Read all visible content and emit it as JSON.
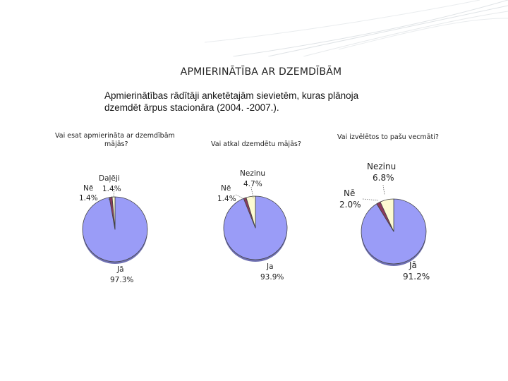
{
  "slide": {
    "title": "APMIERINĀTĪBA AR DZEMDĪBĀM",
    "subtitle_line1": "Apmierinātības rādītāji anketētajām sievietēm, kuras plānoja",
    "subtitle_line2": "dzemdēt ārpus stacionāra (2004. -2007.)."
  },
  "colors": {
    "ja": "#9a9cf7",
    "ne": "#8c3a5e",
    "third": "#fdfbd2",
    "outline": "#444444",
    "decoration": "#dfe3e6"
  },
  "chart_data": [
    {
      "type": "pie",
      "title_lines": [
        "Vai esat apmierināta ar dzemdībām",
        "mājās?"
      ],
      "slices": [
        {
          "label": "Jā",
          "value": 97.3,
          "text": "97.3%"
        },
        {
          "label": "Nē",
          "value": 1.4,
          "text": "1.4%"
        },
        {
          "label": "Daļēji",
          "value": 1.4,
          "text": "1.4%"
        }
      ]
    },
    {
      "type": "pie",
      "title_lines": [
        "Vai atkal dzemdētu mājās?"
      ],
      "slices": [
        {
          "label": "Ja",
          "value": 93.9,
          "text": "93.9%"
        },
        {
          "label": "Nē",
          "value": 1.4,
          "text": "1.4%"
        },
        {
          "label": "Nezinu",
          "value": 4.7,
          "text": "4.7%"
        }
      ]
    },
    {
      "type": "pie",
      "title_lines": [
        "Vai izvēlētos to pašu vecmāti?"
      ],
      "slices": [
        {
          "label": "Jā",
          "value": 91.2,
          "text": "91.2%"
        },
        {
          "label": "Nē",
          "value": 2.0,
          "text": "2.0%"
        },
        {
          "label": "Nezinu",
          "value": 6.8,
          "text": "6.8%"
        }
      ]
    }
  ]
}
